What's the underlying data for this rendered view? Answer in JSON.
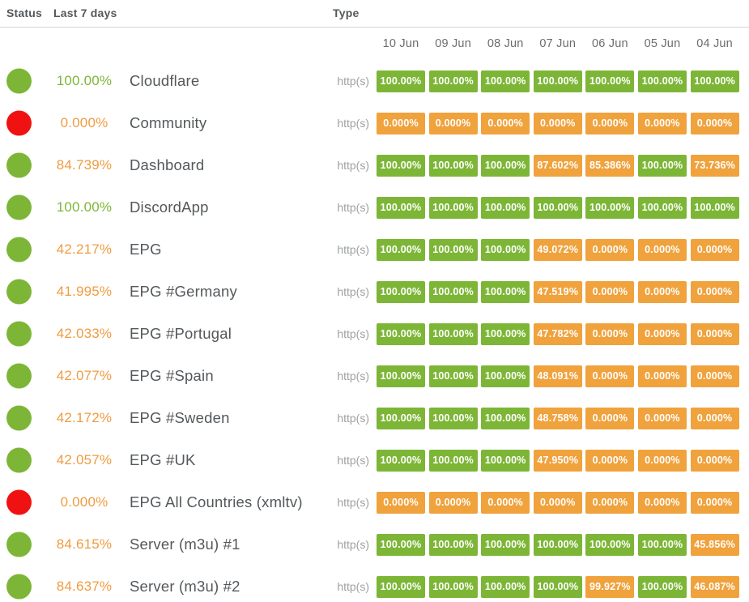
{
  "header": {
    "status_label": "Status",
    "last7_label": "Last 7 days",
    "type_label": "Type"
  },
  "dates": [
    "10 Jun",
    "09 Jun",
    "08 Jun",
    "07 Jun",
    "06 Jun",
    "05 Jun",
    "04 Jun"
  ],
  "colors": {
    "up_green": "#7db637",
    "down_badge_orange": "#f0a23d",
    "down_dot_red": "#f01212",
    "warn_text_orange": "#ef9c41"
  },
  "monitors": [
    {
      "name": "Cloudflare",
      "dot": "up",
      "uptime": "100.00%",
      "uptime_state": "up",
      "type": "http(s)",
      "days": [
        {
          "v": "100.00%",
          "s": "up"
        },
        {
          "v": "100.00%",
          "s": "up"
        },
        {
          "v": "100.00%",
          "s": "up"
        },
        {
          "v": "100.00%",
          "s": "up"
        },
        {
          "v": "100.00%",
          "s": "up"
        },
        {
          "v": "100.00%",
          "s": "up"
        },
        {
          "v": "100.00%",
          "s": "up"
        }
      ]
    },
    {
      "name": "Community",
      "dot": "down",
      "uptime": "0.000%",
      "uptime_state": "warn",
      "type": "http(s)",
      "days": [
        {
          "v": "0.000%",
          "s": "down"
        },
        {
          "v": "0.000%",
          "s": "down"
        },
        {
          "v": "0.000%",
          "s": "down"
        },
        {
          "v": "0.000%",
          "s": "down"
        },
        {
          "v": "0.000%",
          "s": "down"
        },
        {
          "v": "0.000%",
          "s": "down"
        },
        {
          "v": "0.000%",
          "s": "down"
        }
      ]
    },
    {
      "name": "Dashboard",
      "dot": "up",
      "uptime": "84.739%",
      "uptime_state": "warn",
      "type": "http(s)",
      "days": [
        {
          "v": "100.00%",
          "s": "up"
        },
        {
          "v": "100.00%",
          "s": "up"
        },
        {
          "v": "100.00%",
          "s": "up"
        },
        {
          "v": "87.602%",
          "s": "down"
        },
        {
          "v": "85.386%",
          "s": "down"
        },
        {
          "v": "100.00%",
          "s": "up"
        },
        {
          "v": "73.736%",
          "s": "down"
        }
      ]
    },
    {
      "name": "DiscordApp",
      "dot": "up",
      "uptime": "100.00%",
      "uptime_state": "up",
      "type": "http(s)",
      "days": [
        {
          "v": "100.00%",
          "s": "up"
        },
        {
          "v": "100.00%",
          "s": "up"
        },
        {
          "v": "100.00%",
          "s": "up"
        },
        {
          "v": "100.00%",
          "s": "up"
        },
        {
          "v": "100.00%",
          "s": "up"
        },
        {
          "v": "100.00%",
          "s": "up"
        },
        {
          "v": "100.00%",
          "s": "up"
        }
      ]
    },
    {
      "name": "EPG",
      "dot": "up",
      "uptime": "42.217%",
      "uptime_state": "warn",
      "type": "http(s)",
      "days": [
        {
          "v": "100.00%",
          "s": "up"
        },
        {
          "v": "100.00%",
          "s": "up"
        },
        {
          "v": "100.00%",
          "s": "up"
        },
        {
          "v": "49.072%",
          "s": "down"
        },
        {
          "v": "0.000%",
          "s": "down"
        },
        {
          "v": "0.000%",
          "s": "down"
        },
        {
          "v": "0.000%",
          "s": "down"
        }
      ]
    },
    {
      "name": "EPG #Germany",
      "dot": "up",
      "uptime": "41.995%",
      "uptime_state": "warn",
      "type": "http(s)",
      "days": [
        {
          "v": "100.00%",
          "s": "up"
        },
        {
          "v": "100.00%",
          "s": "up"
        },
        {
          "v": "100.00%",
          "s": "up"
        },
        {
          "v": "47.519%",
          "s": "down"
        },
        {
          "v": "0.000%",
          "s": "down"
        },
        {
          "v": "0.000%",
          "s": "down"
        },
        {
          "v": "0.000%",
          "s": "down"
        }
      ]
    },
    {
      "name": "EPG #Portugal",
      "dot": "up",
      "uptime": "42.033%",
      "uptime_state": "warn",
      "type": "http(s)",
      "days": [
        {
          "v": "100.00%",
          "s": "up"
        },
        {
          "v": "100.00%",
          "s": "up"
        },
        {
          "v": "100.00%",
          "s": "up"
        },
        {
          "v": "47.782%",
          "s": "down"
        },
        {
          "v": "0.000%",
          "s": "down"
        },
        {
          "v": "0.000%",
          "s": "down"
        },
        {
          "v": "0.000%",
          "s": "down"
        }
      ]
    },
    {
      "name": "EPG #Spain",
      "dot": "up",
      "uptime": "42.077%",
      "uptime_state": "warn",
      "type": "http(s)",
      "days": [
        {
          "v": "100.00%",
          "s": "up"
        },
        {
          "v": "100.00%",
          "s": "up"
        },
        {
          "v": "100.00%",
          "s": "up"
        },
        {
          "v": "48.091%",
          "s": "down"
        },
        {
          "v": "0.000%",
          "s": "down"
        },
        {
          "v": "0.000%",
          "s": "down"
        },
        {
          "v": "0.000%",
          "s": "down"
        }
      ]
    },
    {
      "name": "EPG #Sweden",
      "dot": "up",
      "uptime": "42.172%",
      "uptime_state": "warn",
      "type": "http(s)",
      "days": [
        {
          "v": "100.00%",
          "s": "up"
        },
        {
          "v": "100.00%",
          "s": "up"
        },
        {
          "v": "100.00%",
          "s": "up"
        },
        {
          "v": "48.758%",
          "s": "down"
        },
        {
          "v": "0.000%",
          "s": "down"
        },
        {
          "v": "0.000%",
          "s": "down"
        },
        {
          "v": "0.000%",
          "s": "down"
        }
      ]
    },
    {
      "name": "EPG #UK",
      "dot": "up",
      "uptime": "42.057%",
      "uptime_state": "warn",
      "type": "http(s)",
      "days": [
        {
          "v": "100.00%",
          "s": "up"
        },
        {
          "v": "100.00%",
          "s": "up"
        },
        {
          "v": "100.00%",
          "s": "up"
        },
        {
          "v": "47.950%",
          "s": "down"
        },
        {
          "v": "0.000%",
          "s": "down"
        },
        {
          "v": "0.000%",
          "s": "down"
        },
        {
          "v": "0.000%",
          "s": "down"
        }
      ]
    },
    {
      "name": "EPG All Countries (xmltv)",
      "dot": "down",
      "uptime": "0.000%",
      "uptime_state": "warn",
      "type": "http(s)",
      "days": [
        {
          "v": "0.000%",
          "s": "down"
        },
        {
          "v": "0.000%",
          "s": "down"
        },
        {
          "v": "0.000%",
          "s": "down"
        },
        {
          "v": "0.000%",
          "s": "down"
        },
        {
          "v": "0.000%",
          "s": "down"
        },
        {
          "v": "0.000%",
          "s": "down"
        },
        {
          "v": "0.000%",
          "s": "down"
        }
      ]
    },
    {
      "name": "Server (m3u) #1",
      "dot": "up",
      "uptime": "84.615%",
      "uptime_state": "warn",
      "type": "http(s)",
      "days": [
        {
          "v": "100.00%",
          "s": "up"
        },
        {
          "v": "100.00%",
          "s": "up"
        },
        {
          "v": "100.00%",
          "s": "up"
        },
        {
          "v": "100.00%",
          "s": "up"
        },
        {
          "v": "100.00%",
          "s": "up"
        },
        {
          "v": "100.00%",
          "s": "up"
        },
        {
          "v": "45.856%",
          "s": "down"
        }
      ]
    },
    {
      "name": "Server (m3u) #2",
      "dot": "up",
      "uptime": "84.637%",
      "uptime_state": "warn",
      "type": "http(s)",
      "days": [
        {
          "v": "100.00%",
          "s": "up"
        },
        {
          "v": "100.00%",
          "s": "up"
        },
        {
          "v": "100.00%",
          "s": "up"
        },
        {
          "v": "100.00%",
          "s": "up"
        },
        {
          "v": "99.927%",
          "s": "down"
        },
        {
          "v": "100.00%",
          "s": "up"
        },
        {
          "v": "46.087%",
          "s": "down"
        }
      ]
    }
  ]
}
